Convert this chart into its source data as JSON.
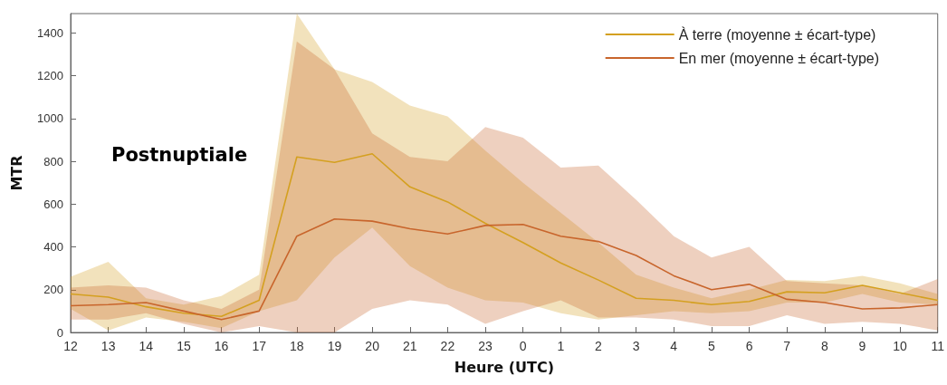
{
  "chart_data": {
    "type": "line",
    "title": "Postnuptiale",
    "xlabel": "Heure (UTC)",
    "ylabel": "MTR",
    "categories": [
      "12",
      "13",
      "14",
      "15",
      "16",
      "17",
      "18",
      "19",
      "20",
      "21",
      "22",
      "23",
      "0",
      "1",
      "2",
      "3",
      "4",
      "5",
      "6",
      "7",
      "8",
      "9",
      "10",
      "11"
    ],
    "series": [
      {
        "name": "À terre (moyenne ± écart-type)",
        "color": "#d4a020",
        "values": [
          180,
          165,
          120,
          90,
          75,
          150,
          820,
          795,
          835,
          680,
          610,
          510,
          420,
          325,
          245,
          160,
          150,
          130,
          145,
          190,
          185,
          220,
          185,
          150
        ],
        "lower": [
          110,
          10,
          70,
          50,
          20,
          100,
          150,
          350,
          490,
          310,
          210,
          150,
          140,
          90,
          60,
          80,
          100,
          90,
          100,
          140,
          140,
          180,
          140,
          130
        ],
        "upper": [
          260,
          330,
          160,
          130,
          170,
          270,
          1490,
          1230,
          1170,
          1060,
          1010,
          850,
          700,
          560,
          420,
          270,
          210,
          160,
          200,
          245,
          240,
          265,
          230,
          180
        ]
      },
      {
        "name": "En mer (moyenne ± écart-type)",
        "color": "#c8652c",
        "values": [
          125,
          130,
          140,
          100,
          60,
          100,
          450,
          530,
          520,
          485,
          460,
          500,
          505,
          450,
          425,
          360,
          265,
          200,
          225,
          155,
          140,
          110,
          115,
          130
        ],
        "lower": [
          60,
          60,
          90,
          40,
          0,
          30,
          0,
          0,
          110,
          150,
          130,
          40,
          100,
          150,
          70,
          70,
          60,
          30,
          30,
          80,
          40,
          50,
          40,
          10
        ],
        "upper": [
          210,
          220,
          210,
          150,
          110,
          200,
          1360,
          1230,
          930,
          820,
          800,
          960,
          910,
          770,
          780,
          620,
          450,
          350,
          400,
          240,
          230,
          220,
          180,
          250
        ]
      }
    ],
    "ylim": [
      0,
      1490
    ],
    "yticks": [
      0,
      200,
      400,
      600,
      800,
      1000,
      1200,
      1400
    ],
    "grid": false,
    "legend": "top right",
    "marker": "none",
    "line_style": "solid"
  }
}
